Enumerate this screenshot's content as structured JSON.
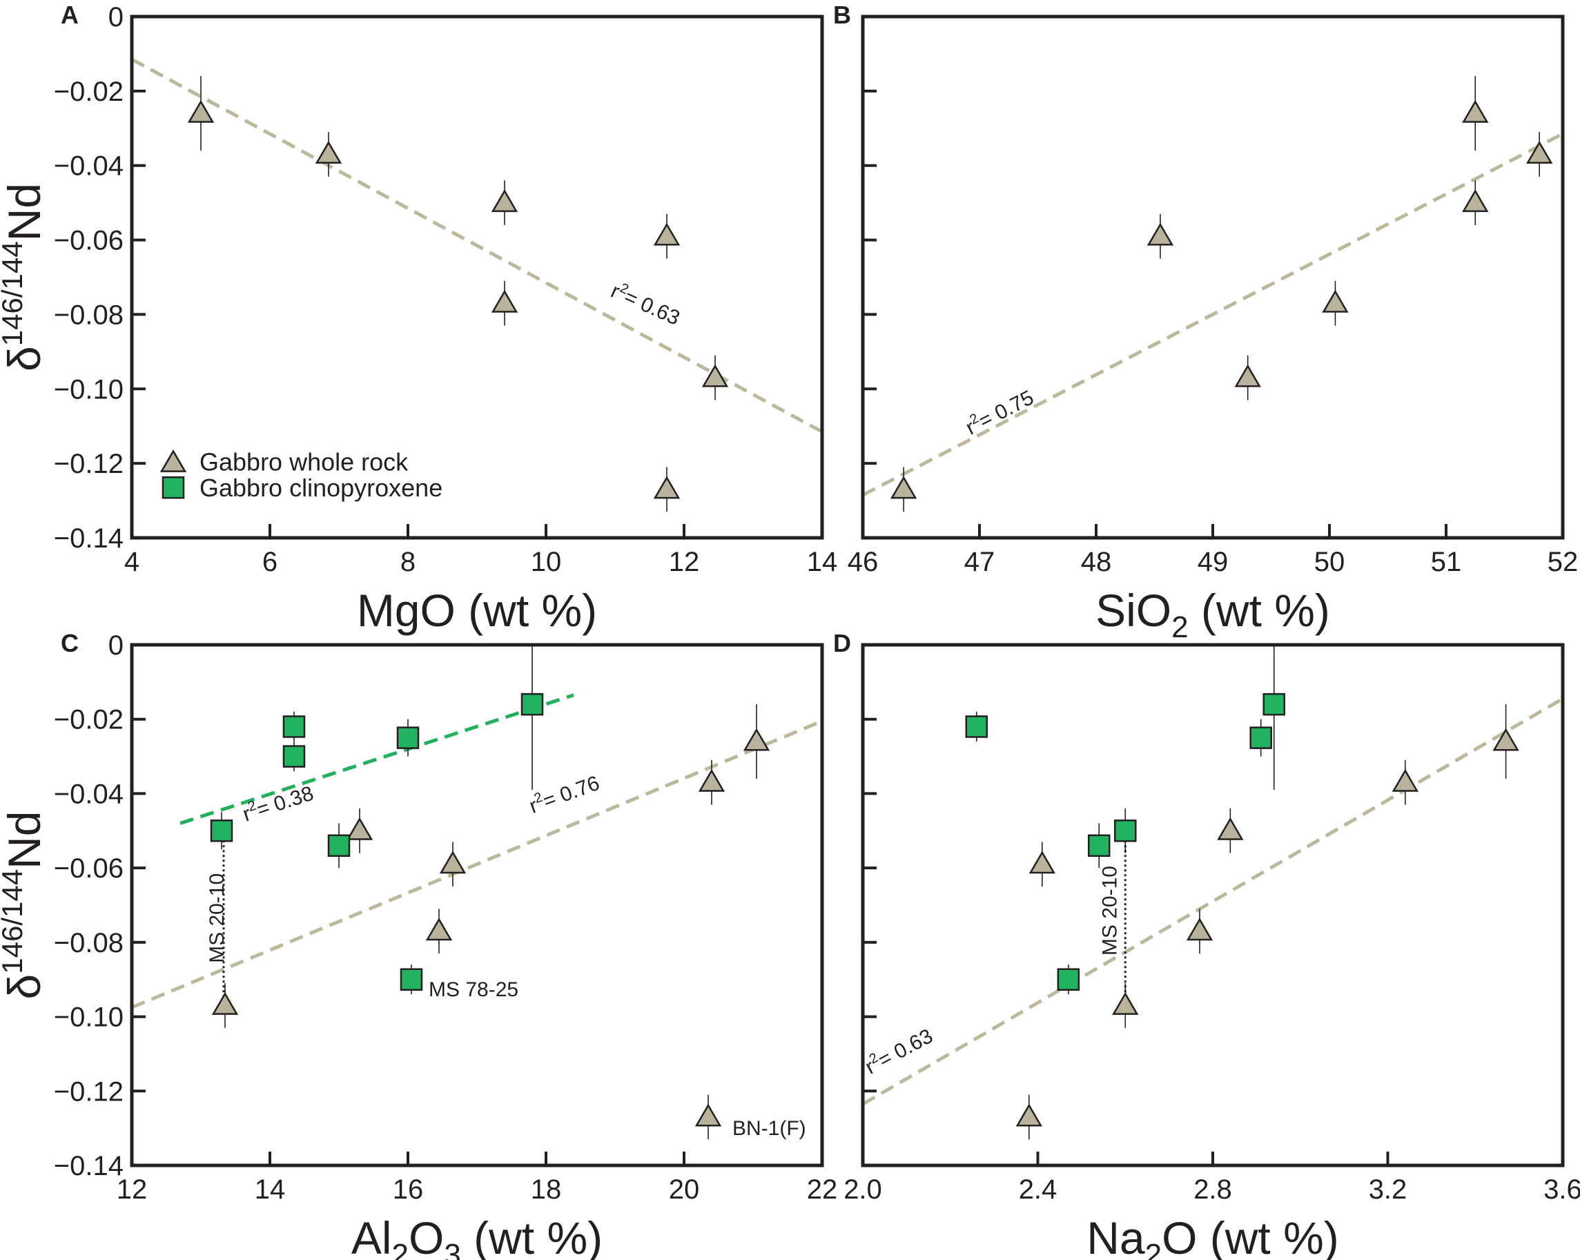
{
  "figure_labels": [
    "A",
    "B",
    "C",
    "D"
  ],
  "legend": {
    "whole_rock": "Gabbro whole rock",
    "cpx": "Gabbro clinopyroxene"
  },
  "colors": {
    "whole_rock": "#b8b39a",
    "whole_rock_line": "#bdb89b",
    "cpx": "#22b360",
    "cpx_line": "#21b05c",
    "axes": "#231f20"
  },
  "ylabel": {
    "delta": "δ",
    "sup": "146/144",
    "base": "Nd"
  },
  "chart_data": [
    {
      "panel": "A",
      "type": "scatter",
      "xlabel": {
        "main": "MgO",
        "sub": "",
        "rest": " (wt %)"
      },
      "xlim": [
        4,
        14
      ],
      "xticks": [
        4,
        6,
        8,
        10,
        12,
        14
      ],
      "xtick_labels": [
        "4",
        "6",
        "8",
        "10",
        "12",
        "14"
      ],
      "ylim": [
        -0.14,
        0
      ],
      "yticks": [
        0,
        -0.02,
        -0.04,
        -0.06,
        -0.08,
        -0.1,
        -0.12,
        -0.14
      ],
      "ytick_labels": [
        "0",
        "−0.02",
        "−0.04",
        "−0.06",
        "−0.08",
        "−0.10",
        "−0.12",
        "−0.14"
      ],
      "series": [
        {
          "name": "Gabbro whole rock",
          "marker": "triangle",
          "points": [
            {
              "x": 5.0,
              "y": -0.026,
              "err": 0.01
            },
            {
              "x": 6.85,
              "y": -0.037,
              "err": 0.006
            },
            {
              "x": 9.4,
              "y": -0.05,
              "err": 0.006
            },
            {
              "x": 9.4,
              "y": -0.077,
              "err": 0.006
            },
            {
              "x": 11.75,
              "y": -0.059,
              "err": 0.006
            },
            {
              "x": 12.45,
              "y": -0.097,
              "err": 0.006
            },
            {
              "x": 11.75,
              "y": -0.127,
              "err": 0.006
            }
          ]
        }
      ],
      "fits": [
        {
          "series": "whole_rock",
          "x0": 4,
          "y0": -0.0115,
          "x1": 14,
          "y1": -0.1115,
          "r2": 0.63,
          "label": "r2= 0.63",
          "label_at": [
            11.4,
            -0.079
          ],
          "label_angle": 24
        }
      ],
      "annotations": [],
      "show_legend": true
    },
    {
      "panel": "B",
      "type": "scatter",
      "xlabel": {
        "main": "SiO",
        "sub": "2",
        "rest": " (wt %)"
      },
      "xlim": [
        46,
        52
      ],
      "xticks": [
        46,
        47,
        48,
        49,
        50,
        51,
        52
      ],
      "xtick_labels": [
        "46",
        "47",
        "48",
        "49",
        "50",
        "51",
        "52"
      ],
      "ylim": [
        -0.14,
        0
      ],
      "yticks": [
        0,
        -0.02,
        -0.04,
        -0.06,
        -0.08,
        -0.1,
        -0.12,
        -0.14
      ],
      "ytick_labels": [],
      "series": [
        {
          "name": "Gabbro whole rock",
          "marker": "triangle",
          "points": [
            {
              "x": 51.25,
              "y": -0.026,
              "err": 0.01
            },
            {
              "x": 51.8,
              "y": -0.037,
              "err": 0.006
            },
            {
              "x": 51.25,
              "y": -0.05,
              "err": 0.006
            },
            {
              "x": 48.55,
              "y": -0.059,
              "err": 0.006
            },
            {
              "x": 50.05,
              "y": -0.077,
              "err": 0.006
            },
            {
              "x": 49.3,
              "y": -0.097,
              "err": 0.006
            },
            {
              "x": 46.35,
              "y": -0.127,
              "err": 0.006
            }
          ]
        }
      ],
      "fits": [
        {
          "series": "whole_rock",
          "x0": 46,
          "y0": -0.1285,
          "x1": 52,
          "y1": -0.0315,
          "r2": 0.75,
          "label": "r2= 0.75",
          "label_at": [
            47.2,
            -0.108
          ],
          "label_angle": -27
        }
      ],
      "annotations": [],
      "show_legend": false
    },
    {
      "panel": "C",
      "type": "scatter",
      "xlabel": {
        "main": "Al",
        "sub": "2",
        "main2": "O",
        "sub2": "3",
        "rest": " (wt %)"
      },
      "xlim": [
        12,
        22
      ],
      "xticks": [
        12,
        14,
        16,
        18,
        20,
        22
      ],
      "xtick_labels": [
        "12",
        "14",
        "16",
        "18",
        "20",
        "22"
      ],
      "ylim": [
        -0.14,
        0
      ],
      "yticks": [
        0,
        -0.02,
        -0.04,
        -0.06,
        -0.08,
        -0.1,
        -0.12,
        -0.14
      ],
      "ytick_labels": [
        "0",
        "−0.02",
        "−0.04",
        "−0.06",
        "−0.08",
        "−0.10",
        "−0.12",
        "−0.14"
      ],
      "series": [
        {
          "name": "Gabbro whole rock",
          "marker": "triangle",
          "points": [
            {
              "x": 21.05,
              "y": -0.026,
              "err": 0.01
            },
            {
              "x": 20.4,
              "y": -0.037,
              "err": 0.006
            },
            {
              "x": 15.3,
              "y": -0.05,
              "err": 0.006
            },
            {
              "x": 16.65,
              "y": -0.059,
              "err": 0.006
            },
            {
              "x": 16.45,
              "y": -0.077,
              "err": 0.006
            },
            {
              "x": 13.35,
              "y": -0.097,
              "err": 0.006
            },
            {
              "x": 20.35,
              "y": -0.127,
              "err": 0.006
            }
          ]
        },
        {
          "name": "Gabbro clinopyroxene",
          "marker": "square",
          "points": [
            {
              "x": 17.8,
              "y": -0.016,
              "err": 0.023
            },
            {
              "x": 14.35,
              "y": -0.022,
              "err": 0.004
            },
            {
              "x": 16.0,
              "y": -0.025,
              "err": 0.005
            },
            {
              "x": 14.35,
              "y": -0.03,
              "err": 0.004
            },
            {
              "x": 13.3,
              "y": -0.05,
              "err": 0.005
            },
            {
              "x": 15.0,
              "y": -0.054,
              "err": 0.006
            },
            {
              "x": 16.05,
              "y": -0.09,
              "err": 0.004
            }
          ]
        }
      ],
      "fits": [
        {
          "series": "whole_rock",
          "x0": 12,
          "y0": -0.0975,
          "x1": 22,
          "y1": -0.0205,
          "r2": 0.76,
          "label": "r2= 0.76",
          "label_at": [
            18.3,
            -0.042
          ],
          "label_angle": -20
        },
        {
          "series": "cpx",
          "x0": 12.7,
          "y0": -0.048,
          "x1": 18.4,
          "y1": -0.0135,
          "r2": 0.38,
          "label": "r2= 0.38",
          "label_at": [
            14.15,
            -0.0445
          ],
          "label_angle": -18
        }
      ],
      "annotations": [
        {
          "text": "MS 20-10",
          "x": 13.33,
          "y": -0.0735,
          "rotate": true
        },
        {
          "text": "MS 78-25",
          "x": 16.3,
          "y": -0.0945,
          "rotate": false
        },
        {
          "text": "BN-1(F)",
          "x": 20.7,
          "y": -0.1318,
          "rotate": false
        }
      ],
      "connector": {
        "x": 13.33,
        "y_top": -0.05,
        "y_bottom": -0.097
      },
      "show_legend": false
    },
    {
      "panel": "D",
      "type": "scatter",
      "xlabel": {
        "main": "Na",
        "sub": "2",
        "rest": "O (wt %)"
      },
      "xlim": [
        2.0,
        3.6
      ],
      "xticks": [
        2.0,
        2.4,
        2.8,
        3.2,
        3.6
      ],
      "xtick_labels": [
        "2.0",
        "2.4",
        "2.8",
        "3.2",
        "3.6"
      ],
      "ylim": [
        -0.14,
        0
      ],
      "yticks": [
        0,
        -0.02,
        -0.04,
        -0.06,
        -0.08,
        -0.1,
        -0.12,
        -0.14
      ],
      "ytick_labels": [],
      "series": [
        {
          "name": "Gabbro whole rock",
          "marker": "triangle",
          "points": [
            {
              "x": 3.47,
              "y": -0.026,
              "err": 0.01
            },
            {
              "x": 3.24,
              "y": -0.037,
              "err": 0.006
            },
            {
              "x": 2.84,
              "y": -0.05,
              "err": 0.006
            },
            {
              "x": 2.41,
              "y": -0.059,
              "err": 0.006
            },
            {
              "x": 2.77,
              "y": -0.077,
              "err": 0.006
            },
            {
              "x": 2.6,
              "y": -0.097,
              "err": 0.006
            },
            {
              "x": 2.38,
              "y": -0.127,
              "err": 0.006
            }
          ]
        },
        {
          "name": "Gabbro clinopyroxene",
          "marker": "square",
          "points": [
            {
              "x": 2.94,
              "y": -0.016,
              "err": 0.023
            },
            {
              "x": 2.26,
              "y": -0.022,
              "err": 0.004
            },
            {
              "x": 2.91,
              "y": -0.025,
              "err": 0.005
            },
            {
              "x": 2.6,
              "y": -0.05,
              "err": 0.006
            },
            {
              "x": 2.54,
              "y": -0.054,
              "err": 0.006
            },
            {
              "x": 2.47,
              "y": -0.09,
              "err": 0.004
            }
          ]
        }
      ],
      "fits": [
        {
          "series": "whole_rock",
          "x0": 2.0,
          "y0": -0.1235,
          "x1": 3.6,
          "y1": -0.0145,
          "r2": 0.63,
          "label": "r2= 0.63",
          "label_at": [
            2.09,
            -0.111
          ],
          "label_angle": -28
        }
      ],
      "annotations": [
        {
          "text": "MS 20-10",
          "x": 2.58,
          "y": -0.0715,
          "rotate": true
        }
      ],
      "connector": {
        "x": 2.6,
        "y_top": -0.05,
        "y_bottom": -0.097
      },
      "show_legend": false
    }
  ]
}
